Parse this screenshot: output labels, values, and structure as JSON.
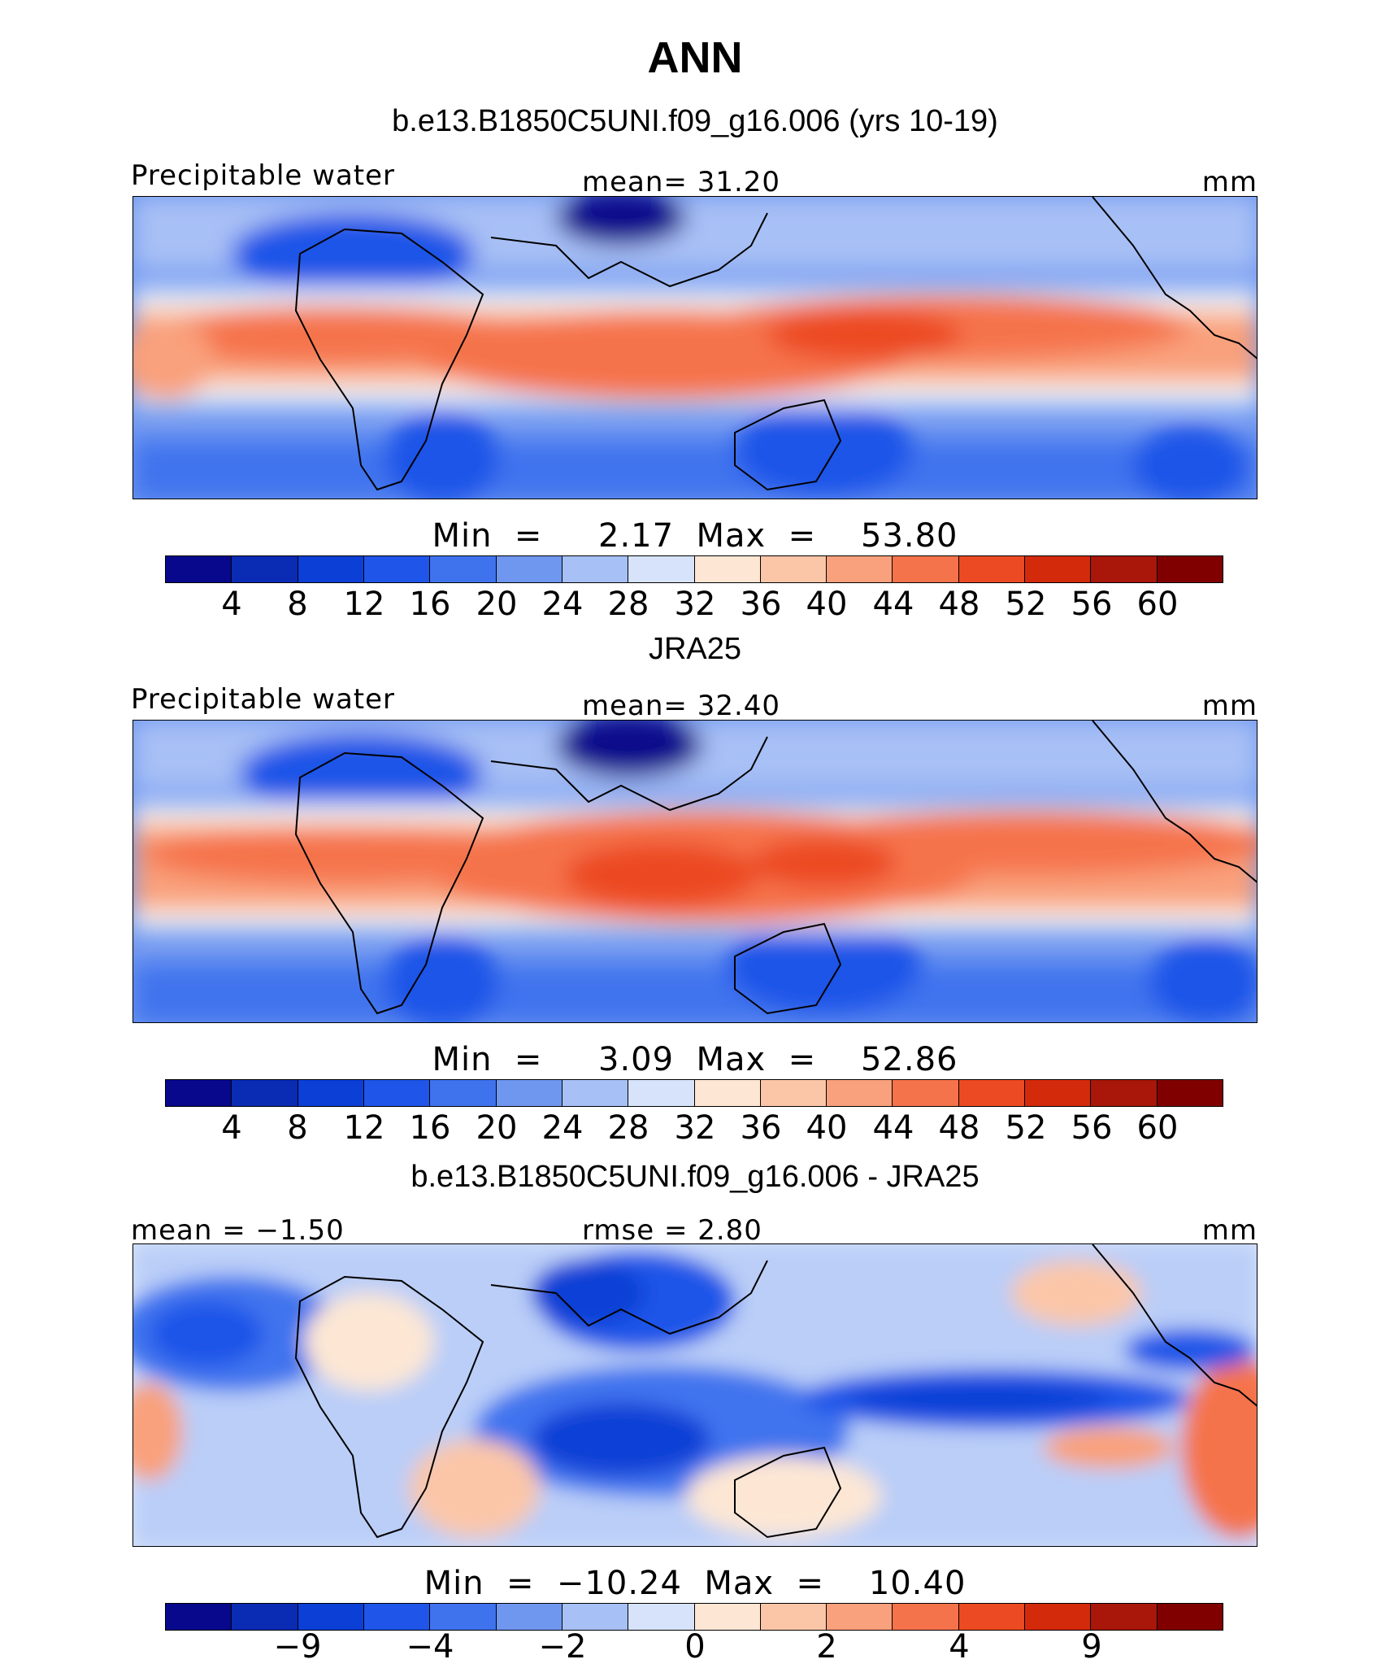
{
  "title": "ANN",
  "panels": [
    {
      "title": "b.e13.B1850C5UNI.f09_g16.006 (yrs 10-19)",
      "left_label": "Precipitable water",
      "center_label": "mean=   31.20",
      "units": "mm",
      "minmax": "Min  =     2.17  Max  =    53.80",
      "ticks": [
        "4",
        "8",
        "12",
        "16",
        "20",
        "24",
        "28",
        "32",
        "36",
        "40",
        "44",
        "48",
        "52",
        "56",
        "60"
      ]
    },
    {
      "title": "JRA25",
      "left_label": "Precipitable water",
      "center_label": "mean=   32.40",
      "units": "mm",
      "minmax": "Min  =     3.09  Max  =    52.86",
      "ticks": [
        "4",
        "8",
        "12",
        "16",
        "20",
        "24",
        "28",
        "32",
        "36",
        "40",
        "44",
        "48",
        "52",
        "56",
        "60"
      ]
    },
    {
      "title": "b.e13.B1850C5UNI.f09_g16.006 - JRA25",
      "left_label": "mean  =   −1.50",
      "center_label": "rmse  =    2.80",
      "units": "mm",
      "minmax": "Min  =  −10.24  Max  =    10.40",
      "ticks": [
        "−9",
        "−4",
        "−2",
        "0",
        "2",
        "4",
        "9"
      ]
    }
  ],
  "colors": {
    "palette": [
      "#08088c",
      "#0a2bb4",
      "#0b3fd6",
      "#1f55e8",
      "#3f73ee",
      "#6f97f0",
      "#a7c0f5",
      "#d6e3fb",
      "#fde7d4",
      "#fbc6a8",
      "#f9a07c",
      "#f5734b",
      "#ec4a22",
      "#d42a0c",
      "#a8170a",
      "#800000"
    ],
    "border": "#000000"
  }
}
